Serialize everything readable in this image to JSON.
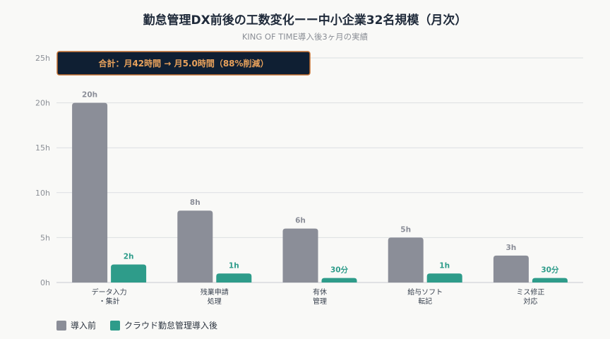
{
  "page": {
    "title": "勤怠管理DX前後の工数変化ーー中小企業32名規模（月次）",
    "subtitle": "KING OF TIME導入後3ヶ月の実績"
  },
  "annotation": {
    "text": "合計：月42時間 → 月5.0時間（88%削減）",
    "bg_color": "#0f1f33",
    "border_color": "#c87333",
    "text_color": "#e9a25c"
  },
  "chart_data": {
    "type": "bar",
    "categories": [
      [
        "データ入力",
        "・集計"
      ],
      [
        "残業申請",
        "処理"
      ],
      [
        "有休",
        "管理"
      ],
      [
        "給与ソフト",
        "転記"
      ],
      [
        "ミス修正",
        "対応"
      ]
    ],
    "series": [
      {
        "name": "導入前",
        "color": "#8b8e98",
        "label_color": "#8b8e98",
        "values": [
          20,
          8,
          6,
          5,
          3
        ],
        "labels": [
          "20h",
          "8h",
          "6h",
          "5h",
          "3h"
        ]
      },
      {
        "name": "クラウド勤怠管理導入後",
        "color": "#2e9c8a",
        "label_color": "#2e9c8a",
        "values": [
          2,
          1,
          0.5,
          1,
          0.5
        ],
        "labels": [
          "2h",
          "1h",
          "30分",
          "1h",
          "30分"
        ]
      }
    ],
    "ylim": [
      0,
      25
    ],
    "yticks": [
      0,
      5,
      10,
      15,
      20,
      25
    ],
    "ytick_labels": [
      "0h",
      "5h",
      "10h",
      "15h",
      "20h",
      "25h"
    ],
    "grid": true,
    "legend_position": "bottom-left"
  }
}
